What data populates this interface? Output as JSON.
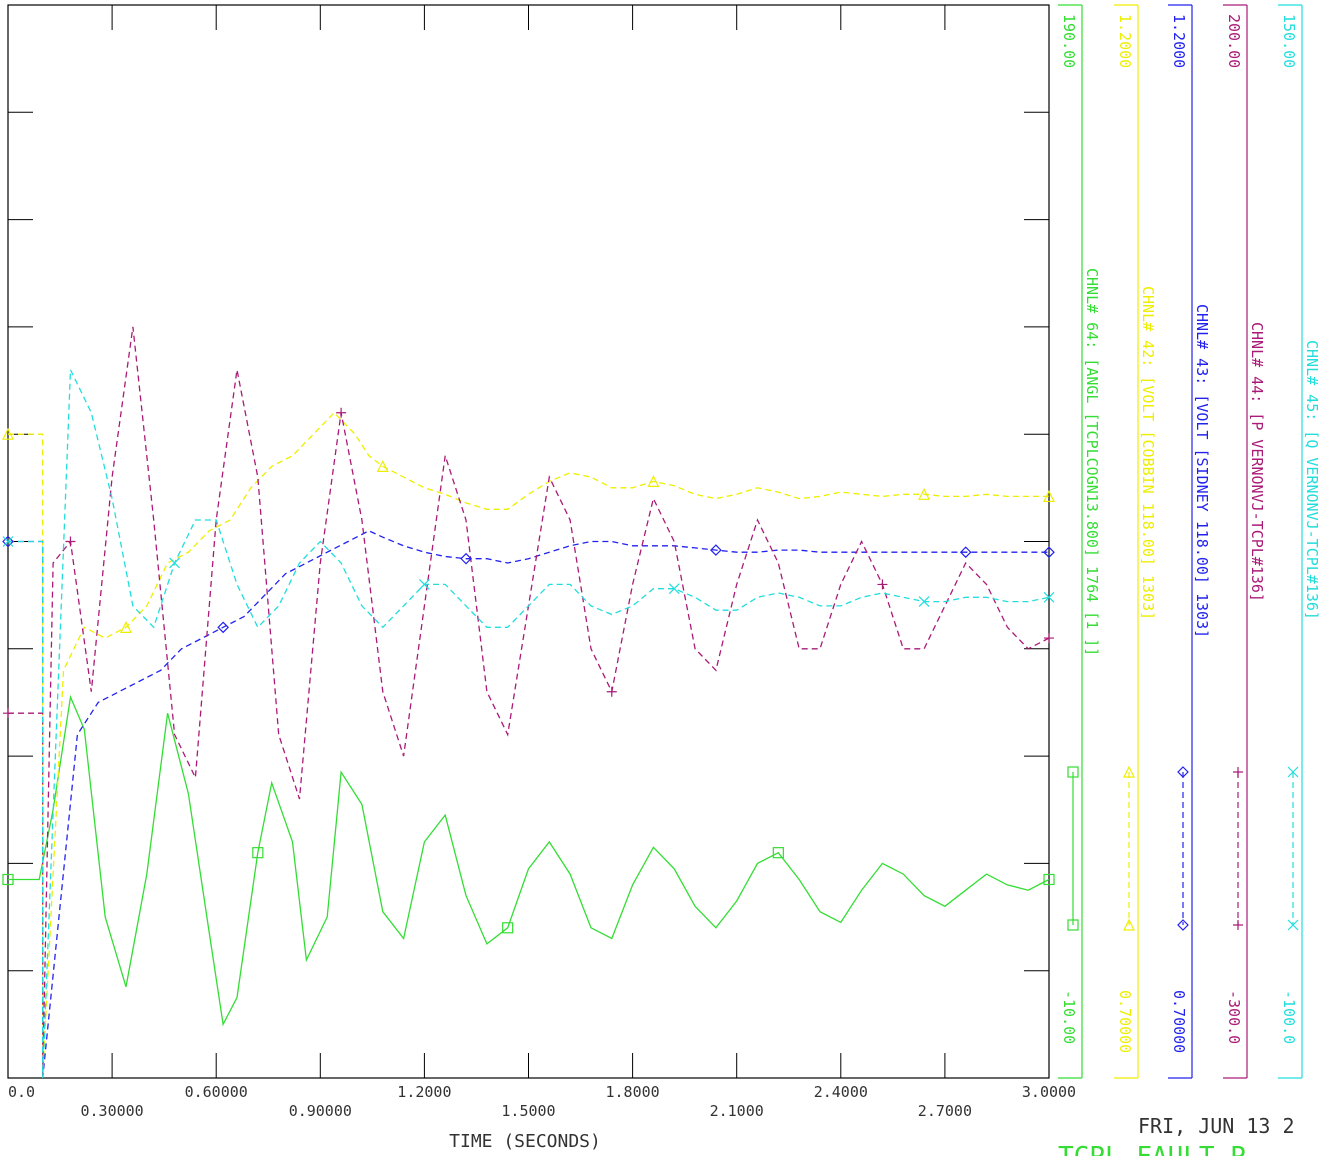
{
  "chart_data": {
    "type": "line",
    "xlabel": "TIME (SECONDS)",
    "xlim": [
      0,
      3.0
    ],
    "x_tick_labels": [
      "0.0",
      "0.30000",
      "0.60000",
      "0.90000",
      "1.2000",
      "1.5000",
      "1.8000",
      "2.1000",
      "2.4000",
      "2.7000",
      "3.0000"
    ],
    "footer_date": "FRI, JUN 13 2",
    "footer_title_partial": "TCPL FAULT P",
    "grid": false,
    "series": [
      {
        "name": "CHNL# 64: [ANGL [TCPLCOGN13.800] 1764 [1 ]]",
        "color": "#33dd33",
        "dash": "solid",
        "marker": "square",
        "ymax_label": "190.00",
        "ymin_label": "-10.00",
        "ylim": [
          -10,
          190
        ],
        "x": [
          0.0,
          0.09,
          0.13,
          0.18,
          0.22,
          0.28,
          0.34,
          0.4,
          0.46,
          0.52,
          0.58,
          0.62,
          0.66,
          0.72,
          0.76,
          0.82,
          0.86,
          0.92,
          0.96,
          1.02,
          1.08,
          1.14,
          1.2,
          1.26,
          1.32,
          1.38,
          1.44,
          1.5,
          1.56,
          1.62,
          1.68,
          1.74,
          1.8,
          1.86,
          1.92,
          1.98,
          2.04,
          2.1,
          2.16,
          2.22,
          2.28,
          2.34,
          2.4,
          2.46,
          2.52,
          2.58,
          2.64,
          2.7,
          2.76,
          2.82,
          2.88,
          2.94,
          3.0
        ],
        "y": [
          27,
          27,
          40,
          61,
          55,
          20,
          7,
          28,
          58,
          43,
          17,
          0,
          5,
          32,
          45,
          34,
          12,
          20,
          47,
          41,
          21,
          16,
          34,
          39,
          24,
          15,
          18,
          29,
          34,
          28,
          18,
          16,
          26,
          33,
          29,
          22,
          18,
          23,
          30,
          32,
          27,
          21,
          19,
          25,
          30,
          28,
          24,
          22,
          25,
          28,
          26,
          25,
          27
        ]
      },
      {
        "name": "CHNL# 42: [VOLT [COBBIN 118.00] 1303]",
        "color": "#eeee00",
        "dash": "dashed",
        "marker": "triangle",
        "ymax_label": "1.2000",
        "ymin_label": "0.70000",
        "ylim": [
          0.7,
          1.2
        ],
        "x": [
          0.0,
          0.1,
          0.1,
          0.16,
          0.22,
          0.28,
          0.34,
          0.4,
          0.46,
          0.52,
          0.58,
          0.64,
          0.7,
          0.76,
          0.82,
          0.88,
          0.94,
          1.0,
          1.04,
          1.08,
          1.14,
          1.2,
          1.26,
          1.32,
          1.38,
          1.44,
          1.5,
          1.56,
          1.62,
          1.68,
          1.74,
          1.8,
          1.86,
          1.92,
          1.98,
          2.04,
          2.1,
          2.16,
          2.22,
          2.28,
          2.34,
          2.4,
          2.46,
          2.52,
          2.58,
          2.64,
          2.7,
          2.76,
          2.82,
          2.88,
          2.94,
          3.0
        ],
        "y": [
          1.0,
          1.0,
          0.68,
          0.89,
          0.91,
          0.905,
          0.91,
          0.92,
          0.94,
          0.945,
          0.955,
          0.96,
          0.975,
          0.985,
          0.99,
          1.0,
          1.01,
          1.0,
          0.99,
          0.985,
          0.98,
          0.975,
          0.972,
          0.968,
          0.965,
          0.965,
          0.972,
          0.978,
          0.982,
          0.98,
          0.975,
          0.975,
          0.978,
          0.976,
          0.972,
          0.97,
          0.972,
          0.975,
          0.973,
          0.97,
          0.971,
          0.973,
          0.972,
          0.971,
          0.972,
          0.972,
          0.971,
          0.971,
          0.972,
          0.971,
          0.971,
          0.971
        ]
      },
      {
        "name": "CHNL# 43: [VOLT [SIDNEY 118.00] 1303]",
        "color": "#2222ee",
        "dash": "dashed",
        "marker": "diamond",
        "ymax_label": "1.2000",
        "ymin_label": "0.70000",
        "ylim": [
          0.7,
          1.2
        ],
        "x": [
          0.0,
          0.1,
          0.1,
          0.2,
          0.26,
          0.32,
          0.38,
          0.44,
          0.5,
          0.56,
          0.62,
          0.68,
          0.74,
          0.8,
          0.86,
          0.92,
          0.98,
          1.04,
          1.08,
          1.14,
          1.2,
          1.26,
          1.32,
          1.38,
          1.44,
          1.5,
          1.56,
          1.62,
          1.68,
          1.74,
          1.8,
          1.86,
          1.92,
          1.98,
          2.04,
          2.1,
          2.16,
          2.22,
          2.28,
          2.34,
          2.4,
          2.46,
          2.52,
          2.58,
          2.64,
          2.7,
          2.76,
          2.82,
          2.88,
          2.94,
          3.0
        ],
        "y": [
          0.95,
          0.95,
          0.68,
          0.86,
          0.875,
          0.88,
          0.885,
          0.89,
          0.9,
          0.905,
          0.91,
          0.915,
          0.925,
          0.935,
          0.94,
          0.945,
          0.95,
          0.955,
          0.952,
          0.948,
          0.945,
          0.943,
          0.942,
          0.942,
          0.94,
          0.942,
          0.945,
          0.948,
          0.95,
          0.95,
          0.948,
          0.948,
          0.948,
          0.947,
          0.946,
          0.945,
          0.945,
          0.946,
          0.946,
          0.945,
          0.945,
          0.945,
          0.945,
          0.945,
          0.945,
          0.945,
          0.945,
          0.945,
          0.945,
          0.945,
          0.945
        ]
      },
      {
        "name": "CHNL# 44: [P VERNONVJ-TCPL#136]",
        "color": "#aa1a77",
        "dash": "dashed",
        "marker": "plus",
        "ymax_label": "200.00",
        "ymin_label": "-300.0",
        "ylim": [
          -300,
          200
        ],
        "x": [
          0.0,
          0.1,
          0.1,
          0.13,
          0.18,
          0.24,
          0.3,
          0.36,
          0.42,
          0.48,
          0.54,
          0.6,
          0.66,
          0.72,
          0.78,
          0.84,
          0.9,
          0.96,
          1.02,
          1.08,
          1.14,
          1.2,
          1.26,
          1.32,
          1.38,
          1.44,
          1.5,
          1.56,
          1.62,
          1.68,
          1.74,
          1.8,
          1.86,
          1.92,
          1.98,
          2.04,
          2.1,
          2.16,
          2.22,
          2.28,
          2.34,
          2.4,
          2.46,
          2.52,
          2.58,
          2.64,
          2.7,
          2.76,
          2.82,
          2.88,
          2.94,
          3.0
        ],
        "y": [
          -130,
          -130,
          -300,
          -60,
          -50,
          -120,
          -20,
          50,
          -40,
          -140,
          -160,
          -40,
          30,
          -20,
          -140,
          -170,
          -60,
          10,
          -40,
          -120,
          -150,
          -80,
          -10,
          -40,
          -120,
          -140,
          -80,
          -20,
          -40,
          -100,
          -120,
          -70,
          -30,
          -50,
          -100,
          -110,
          -70,
          -40,
          -60,
          -100,
          -100,
          -70,
          -50,
          -70,
          -100,
          -100,
          -80,
          -60,
          -70,
          -90,
          -100,
          -95
        ]
      },
      {
        "name": "CHNL# 45: [Q VERNONVJ-TCPL#136]",
        "color": "#22dddd",
        "dash": "dashed",
        "marker": "x",
        "ymax_label": "150.00",
        "ymin_label": "-100.0",
        "ylim": [
          -100,
          150
        ],
        "x": [
          0.0,
          0.1,
          0.1,
          0.18,
          0.24,
          0.3,
          0.36,
          0.42,
          0.48,
          0.54,
          0.6,
          0.66,
          0.72,
          0.78,
          0.84,
          0.9,
          0.96,
          1.02,
          1.08,
          1.14,
          1.2,
          1.26,
          1.32,
          1.38,
          1.44,
          1.5,
          1.56,
          1.62,
          1.68,
          1.74,
          1.8,
          1.86,
          1.92,
          1.98,
          2.04,
          2.1,
          2.16,
          2.22,
          2.28,
          2.34,
          2.4,
          2.46,
          2.52,
          2.58,
          2.64,
          2.7,
          2.76,
          2.82,
          2.88,
          2.94,
          3.0
        ],
        "y": [
          25,
          25,
          -100,
          65,
          55,
          35,
          10,
          5,
          20,
          30,
          30,
          15,
          5,
          10,
          20,
          25,
          20,
          10,
          5,
          10,
          15,
          15,
          10,
          5,
          5,
          10,
          15,
          15,
          10,
          8,
          10,
          14,
          14,
          12,
          9,
          9,
          12,
          13,
          12,
          10,
          10,
          12,
          13,
          12,
          11,
          11,
          12,
          12,
          11,
          11,
          12
        ]
      }
    ]
  }
}
